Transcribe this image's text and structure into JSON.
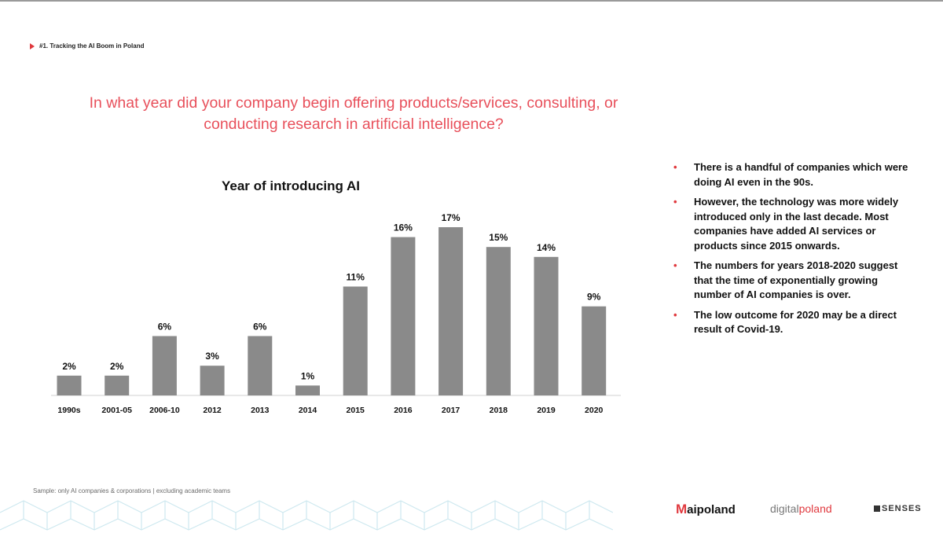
{
  "header": {
    "breadcrumb": "#1. Tracking the AI Boom in Poland"
  },
  "question": "In what year did your company begin offering products/services, consulting, or conducting research in artificial intelligence?",
  "chart_data": {
    "type": "bar",
    "title": "Year of introducing AI",
    "categories": [
      "1990s",
      "2001-05",
      "2006-10",
      "2012",
      "2013",
      "2014",
      "2015",
      "2016",
      "2017",
      "2018",
      "2019",
      "2020"
    ],
    "values": [
      2,
      2,
      6,
      3,
      6,
      1,
      11,
      16,
      17,
      15,
      14,
      9
    ],
    "value_labels": [
      "2%",
      "2%",
      "6%",
      "3%",
      "6%",
      "1%",
      "11%",
      "16%",
      "17%",
      "15%",
      "14%",
      "9%"
    ],
    "xlabel": "",
    "ylabel": "",
    "ylim": [
      0,
      17
    ],
    "bar_color": "#8a8a8a",
    "grid": false
  },
  "bullets": [
    "There is a handful of companies which were doing AI even in the 90s.",
    "However, the technology was more widely introduced only in the last decade. Most companies have added AI services or products since 2015 onwards.",
    "The numbers for years 2018-2020 suggest that the time of exponentially growing number of AI companies is over.",
    "The low outcome for 2020 may be a direct result of Covid-19."
  ],
  "bullet_marker": "•",
  "footer": {
    "sample": "Sample: only AI companies & corporations | excluding academic teams"
  },
  "logos": {
    "aipoland": {
      "mark": "M",
      "text": "aipoland"
    },
    "digitalpoland": {
      "part1": "digital",
      "part2": "poland"
    },
    "senses": "SENSES"
  },
  "colors": {
    "accent": "#e0393e",
    "question": "#e8505b",
    "bar": "#8a8a8a"
  }
}
